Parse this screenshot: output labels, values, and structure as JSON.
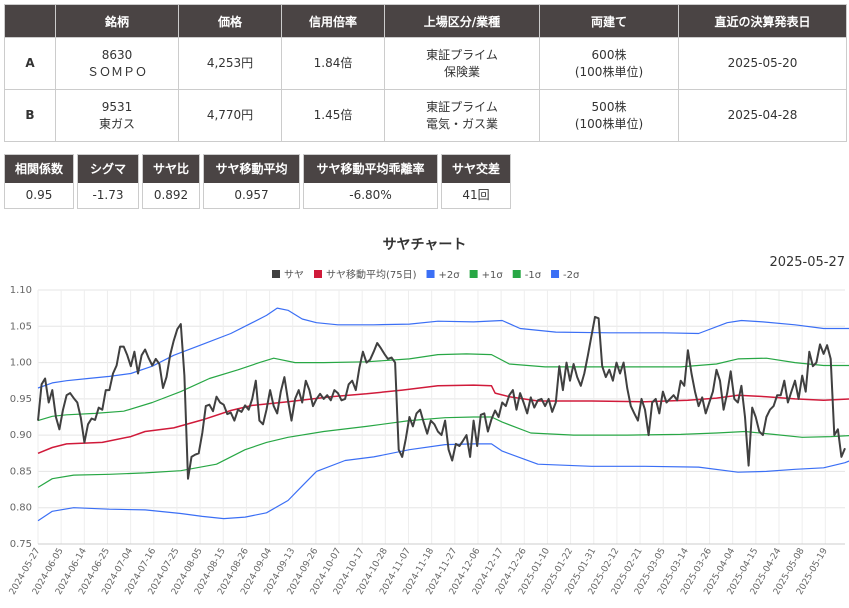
{
  "table": {
    "headers": [
      "",
      "銘柄",
      "価格",
      "信用倍率",
      "上場区分/業種",
      "両建て",
      "直近の決算発表日"
    ],
    "rows": [
      {
        "label": "A",
        "code": "8630",
        "name": "ＳＯＭＰＯ",
        "price": "4,253円",
        "margin": "1.84倍",
        "market": "東証プライム",
        "sector": "保険業",
        "qty": "600株",
        "unit": "(100株単位)",
        "date": "2025-05-20"
      },
      {
        "label": "B",
        "code": "9531",
        "name": "東ガス",
        "price": "4,770円",
        "margin": "1.45倍",
        "market": "東証プライム",
        "sector": "電気・ガス業",
        "qty": "500株",
        "unit": "(100株単位)",
        "date": "2025-04-28"
      }
    ]
  },
  "stats": [
    {
      "label": "相関係数",
      "value": "0.95"
    },
    {
      "label": "シグマ",
      "value": "-1.73"
    },
    {
      "label": "サヤ比",
      "value": "0.892"
    },
    {
      "label": "サヤ移動平均",
      "value": "0.957"
    },
    {
      "label": "サヤ移動平均乖離率",
      "value": "-6.80%"
    },
    {
      "label": "サヤ交差",
      "value": "41回"
    }
  ],
  "chart_data": {
    "type": "line",
    "title": "サヤチャート",
    "date_label": "2025-05-27",
    "ylim": [
      0.75,
      1.1
    ],
    "yticks": [
      "0.75",
      "0.80",
      "0.85",
      "0.90",
      "0.95",
      "1.00",
      "1.05",
      "1.10"
    ],
    "grid": true,
    "legend_position": "top",
    "x_ticks": [
      "2024-05-27",
      "2024-06-05",
      "2024-06-14",
      "2024-06-25",
      "2024-07-04",
      "2024-07-16",
      "2024-07-25",
      "2024-08-05",
      "2024-08-15",
      "2024-08-26",
      "2024-09-04",
      "2024-09-13",
      "2024-09-26",
      "2024-10-07",
      "2024-10-17",
      "2024-10-28",
      "2024-11-07",
      "2024-11-18",
      "2024-11-27",
      "2024-12-06",
      "2024-12-17",
      "2024-12-26",
      "2025-01-10",
      "2025-01-22",
      "2025-01-31",
      "2025-02-12",
      "2025-02-21",
      "2025-03-05",
      "2025-03-14",
      "2025-03-26",
      "2025-04-04",
      "2025-04-15",
      "2025-04-24",
      "2025-05-08",
      "2025-05-19"
    ],
    "series": [
      {
        "name": "サヤ",
        "color": "#404040",
        "width": 2,
        "values": [
          0.92,
          0.97,
          0.978,
          0.945,
          0.962,
          0.925,
          0.908,
          0.935,
          0.955,
          0.958,
          0.951,
          0.945,
          0.924,
          0.89,
          0.915,
          0.923,
          0.921,
          0.938,
          0.935,
          0.962,
          0.962,
          0.985,
          0.996,
          1.022,
          1.022,
          1.01,
          0.995,
          1.015,
          0.985,
          1.01,
          1.018,
          1.006,
          0.996,
          1.005,
          0.998,
          0.965,
          0.98,
          1.01,
          1.03,
          1.046,
          1.053,
          0.982,
          0.84,
          0.87,
          0.873,
          0.875,
          0.903,
          0.94,
          0.942,
          0.933,
          0.953,
          0.945,
          0.942,
          0.929,
          0.931,
          0.92,
          0.935,
          0.932,
          0.941,
          0.935,
          0.95,
          0.975,
          0.92,
          0.915,
          0.935,
          0.962,
          0.94,
          0.93,
          0.96,
          0.98,
          0.948,
          0.92,
          0.95,
          0.962,
          0.945,
          0.975,
          0.962,
          0.94,
          0.95,
          0.957,
          0.95,
          0.955,
          0.948,
          0.962,
          0.958,
          0.948,
          0.95,
          0.97,
          0.975,
          0.962,
          0.993,
          1.015,
          1.0,
          1.004,
          1.015,
          1.027,
          1.02,
          1.012,
          1.005,
          1.007,
          1.0,
          0.88,
          0.87,
          0.895,
          0.925,
          0.912,
          0.93,
          0.935,
          0.918,
          0.902,
          0.92,
          0.915,
          0.905,
          0.9,
          0.92,
          0.88,
          0.865,
          0.888,
          0.885,
          0.892,
          0.9,
          0.87,
          0.92,
          0.885,
          0.928,
          0.93,
          0.905,
          0.922,
          0.934,
          0.925,
          0.945,
          0.94,
          0.955,
          0.962,
          0.935,
          0.958,
          0.945,
          0.93,
          0.952,
          0.938,
          0.948,
          0.95,
          0.94,
          0.95,
          0.932,
          0.945,
          0.995,
          0.962,
          1.0,
          0.975,
          0.998,
          0.98,
          0.968,
          0.985,
          1.01,
          1.037,
          1.063,
          1.061,
          0.995,
          0.98,
          0.99,
          0.975,
          1.0,
          0.985,
          1.0,
          0.965,
          0.94,
          0.93,
          0.92,
          0.95,
          0.935,
          0.9,
          0.945,
          0.95,
          0.93,
          0.96,
          0.945,
          0.95,
          0.955,
          0.948,
          0.975,
          0.968,
          1.017,
          0.985,
          0.96,
          0.94,
          0.952,
          0.93,
          0.945,
          0.96,
          0.99,
          0.975,
          0.935,
          0.958,
          0.988,
          0.95,
          0.945,
          0.968,
          0.925,
          0.858,
          0.938,
          0.925,
          0.905,
          0.9,
          0.925,
          0.935,
          0.94,
          0.955,
          0.955,
          0.975,
          0.945,
          0.96,
          0.975,
          0.95,
          0.982,
          0.96,
          1.015,
          0.995,
          1.0,
          1.025,
          1.012,
          1.024,
          1.005,
          0.9,
          0.908,
          0.87,
          0.882
        ]
      },
      {
        "name": "サヤ移動平均(75日)",
        "color": "#d01a3a",
        "width": 1.5,
        "points": [
          [
            0,
            0.875
          ],
          [
            4,
            0.883
          ],
          [
            8,
            0.888
          ],
          [
            18,
            0.89
          ],
          [
            26,
            0.898
          ],
          [
            30,
            0.905
          ],
          [
            38,
            0.91
          ],
          [
            46,
            0.921
          ],
          [
            54,
            0.934
          ],
          [
            60,
            0.941
          ],
          [
            70,
            0.946
          ],
          [
            82,
            0.953
          ],
          [
            92,
            0.957
          ],
          [
            102,
            0.962
          ],
          [
            112,
            0.968
          ],
          [
            122,
            0.969
          ],
          [
            127,
            0.968
          ],
          [
            128,
            0.958
          ],
          [
            132,
            0.953
          ],
          [
            140,
            0.947
          ],
          [
            155,
            0.947
          ],
          [
            170,
            0.946
          ],
          [
            182,
            0.948
          ],
          [
            190,
            0.951
          ],
          [
            196,
            0.955
          ],
          [
            204,
            0.953
          ],
          [
            212,
            0.95
          ],
          [
            220,
            0.948
          ],
          [
            228,
            0.95
          ],
          [
            234,
            0.954
          ],
          [
            240,
            0.962
          ],
          [
            246,
            0.965
          ],
          [
            250,
            0.968
          ],
          [
            256,
            0.968
          ],
          [
            262,
            0.966
          ],
          [
            270,
            0.967
          ],
          [
            276,
            0.967
          ],
          [
            280,
            0.962
          ],
          [
            284,
            0.958
          ]
        ]
      },
      {
        "name": "+2σ",
        "color": "#3b6ff5",
        "width": 1.2,
        "points": [
          [
            0,
            0.965
          ],
          [
            4,
            0.972
          ],
          [
            8,
            0.975
          ],
          [
            14,
            0.978
          ],
          [
            20,
            0.981
          ],
          [
            26,
            0.985
          ],
          [
            32,
            0.995
          ],
          [
            38,
            1.01
          ],
          [
            46,
            1.025
          ],
          [
            54,
            1.04
          ],
          [
            60,
            1.055
          ],
          [
            64,
            1.065
          ],
          [
            67,
            1.075
          ],
          [
            70,
            1.072
          ],
          [
            74,
            1.06
          ],
          [
            78,
            1.055
          ],
          [
            84,
            1.052
          ],
          [
            94,
            1.052
          ],
          [
            104,
            1.053
          ],
          [
            112,
            1.057
          ],
          [
            122,
            1.056
          ],
          [
            130,
            1.058
          ],
          [
            135,
            1.047
          ],
          [
            145,
            1.042
          ],
          [
            160,
            1.041
          ],
          [
            175,
            1.041
          ],
          [
            185,
            1.04
          ],
          [
            193,
            1.055
          ],
          [
            197,
            1.058
          ],
          [
            203,
            1.056
          ],
          [
            212,
            1.052
          ],
          [
            220,
            1.047
          ],
          [
            228,
            1.047
          ],
          [
            236,
            1.046
          ],
          [
            244,
            1.043
          ],
          [
            252,
            1.047
          ],
          [
            260,
            1.046
          ],
          [
            268,
            1.046
          ],
          [
            276,
            1.047
          ],
          [
            281,
            1.04
          ],
          [
            284,
            1.032
          ]
        ]
      },
      {
        "name": "+1σ",
        "color": "#28a745",
        "width": 1.2,
        "points": [
          [
            0,
            0.92
          ],
          [
            4,
            0.926
          ],
          [
            8,
            0.928
          ],
          [
            16,
            0.93
          ],
          [
            24,
            0.933
          ],
          [
            32,
            0.945
          ],
          [
            40,
            0.96
          ],
          [
            48,
            0.978
          ],
          [
            56,
            0.99
          ],
          [
            62,
            1.0
          ],
          [
            66,
            1.006
          ],
          [
            72,
            1.0
          ],
          [
            80,
            1.0
          ],
          [
            92,
            1.001
          ],
          [
            104,
            1.005
          ],
          [
            112,
            1.011
          ],
          [
            120,
            1.012
          ],
          [
            127,
            1.011
          ],
          [
            132,
            0.998
          ],
          [
            142,
            0.994
          ],
          [
            160,
            0.994
          ],
          [
            180,
            0.994
          ],
          [
            190,
            0.998
          ],
          [
            196,
            1.005
          ],
          [
            204,
            1.006
          ],
          [
            212,
            1.0
          ],
          [
            220,
            0.996
          ],
          [
            228,
            0.996
          ],
          [
            236,
            1.0
          ],
          [
            244,
            1.003
          ],
          [
            252,
            1.004
          ],
          [
            262,
            1.005
          ],
          [
            272,
            1.006
          ],
          [
            278,
            1.003
          ],
          [
            284,
            0.995
          ]
        ]
      },
      {
        "name": "-1σ",
        "color": "#28a745",
        "width": 1.2,
        "points": [
          [
            0,
            0.828
          ],
          [
            4,
            0.84
          ],
          [
            10,
            0.845
          ],
          [
            20,
            0.846
          ],
          [
            30,
            0.848
          ],
          [
            40,
            0.851
          ],
          [
            50,
            0.86
          ],
          [
            58,
            0.88
          ],
          [
            64,
            0.89
          ],
          [
            70,
            0.897
          ],
          [
            80,
            0.905
          ],
          [
            92,
            0.912
          ],
          [
            104,
            0.92
          ],
          [
            114,
            0.924
          ],
          [
            122,
            0.925
          ],
          [
            127,
            0.925
          ],
          [
            130,
            0.918
          ],
          [
            138,
            0.903
          ],
          [
            150,
            0.9
          ],
          [
            165,
            0.9
          ],
          [
            180,
            0.901
          ],
          [
            190,
            0.903
          ],
          [
            198,
            0.905
          ],
          [
            206,
            0.901
          ],
          [
            214,
            0.897
          ],
          [
            222,
            0.898
          ],
          [
            230,
            0.9
          ],
          [
            236,
            0.905
          ],
          [
            242,
            0.917
          ],
          [
            248,
            0.922
          ],
          [
            256,
            0.926
          ],
          [
            266,
            0.927
          ],
          [
            276,
            0.926
          ],
          [
            282,
            0.921
          ],
          [
            284,
            0.918
          ]
        ]
      },
      {
        "name": "-2σ",
        "color": "#3b6ff5",
        "width": 1.2,
        "points": [
          [
            0,
            0.782
          ],
          [
            4,
            0.795
          ],
          [
            10,
            0.8
          ],
          [
            20,
            0.798
          ],
          [
            30,
            0.797
          ],
          [
            40,
            0.792
          ],
          [
            46,
            0.788
          ],
          [
            52,
            0.785
          ],
          [
            58,
            0.787
          ],
          [
            64,
            0.793
          ],
          [
            70,
            0.81
          ],
          [
            74,
            0.83
          ],
          [
            78,
            0.85
          ],
          [
            86,
            0.865
          ],
          [
            94,
            0.87
          ],
          [
            104,
            0.88
          ],
          [
            114,
            0.887
          ],
          [
            122,
            0.888
          ],
          [
            127,
            0.888
          ],
          [
            130,
            0.878
          ],
          [
            140,
            0.86
          ],
          [
            155,
            0.857
          ],
          [
            170,
            0.857
          ],
          [
            185,
            0.856
          ],
          [
            196,
            0.849
          ],
          [
            204,
            0.85
          ],
          [
            212,
            0.853
          ],
          [
            220,
            0.855
          ],
          [
            226,
            0.862
          ],
          [
            232,
            0.874
          ],
          [
            238,
            0.888
          ],
          [
            244,
            0.893
          ],
          [
            250,
            0.887
          ],
          [
            258,
            0.884
          ],
          [
            268,
            0.886
          ],
          [
            276,
            0.886
          ],
          [
            284,
            0.888
          ]
        ]
      }
    ]
  }
}
